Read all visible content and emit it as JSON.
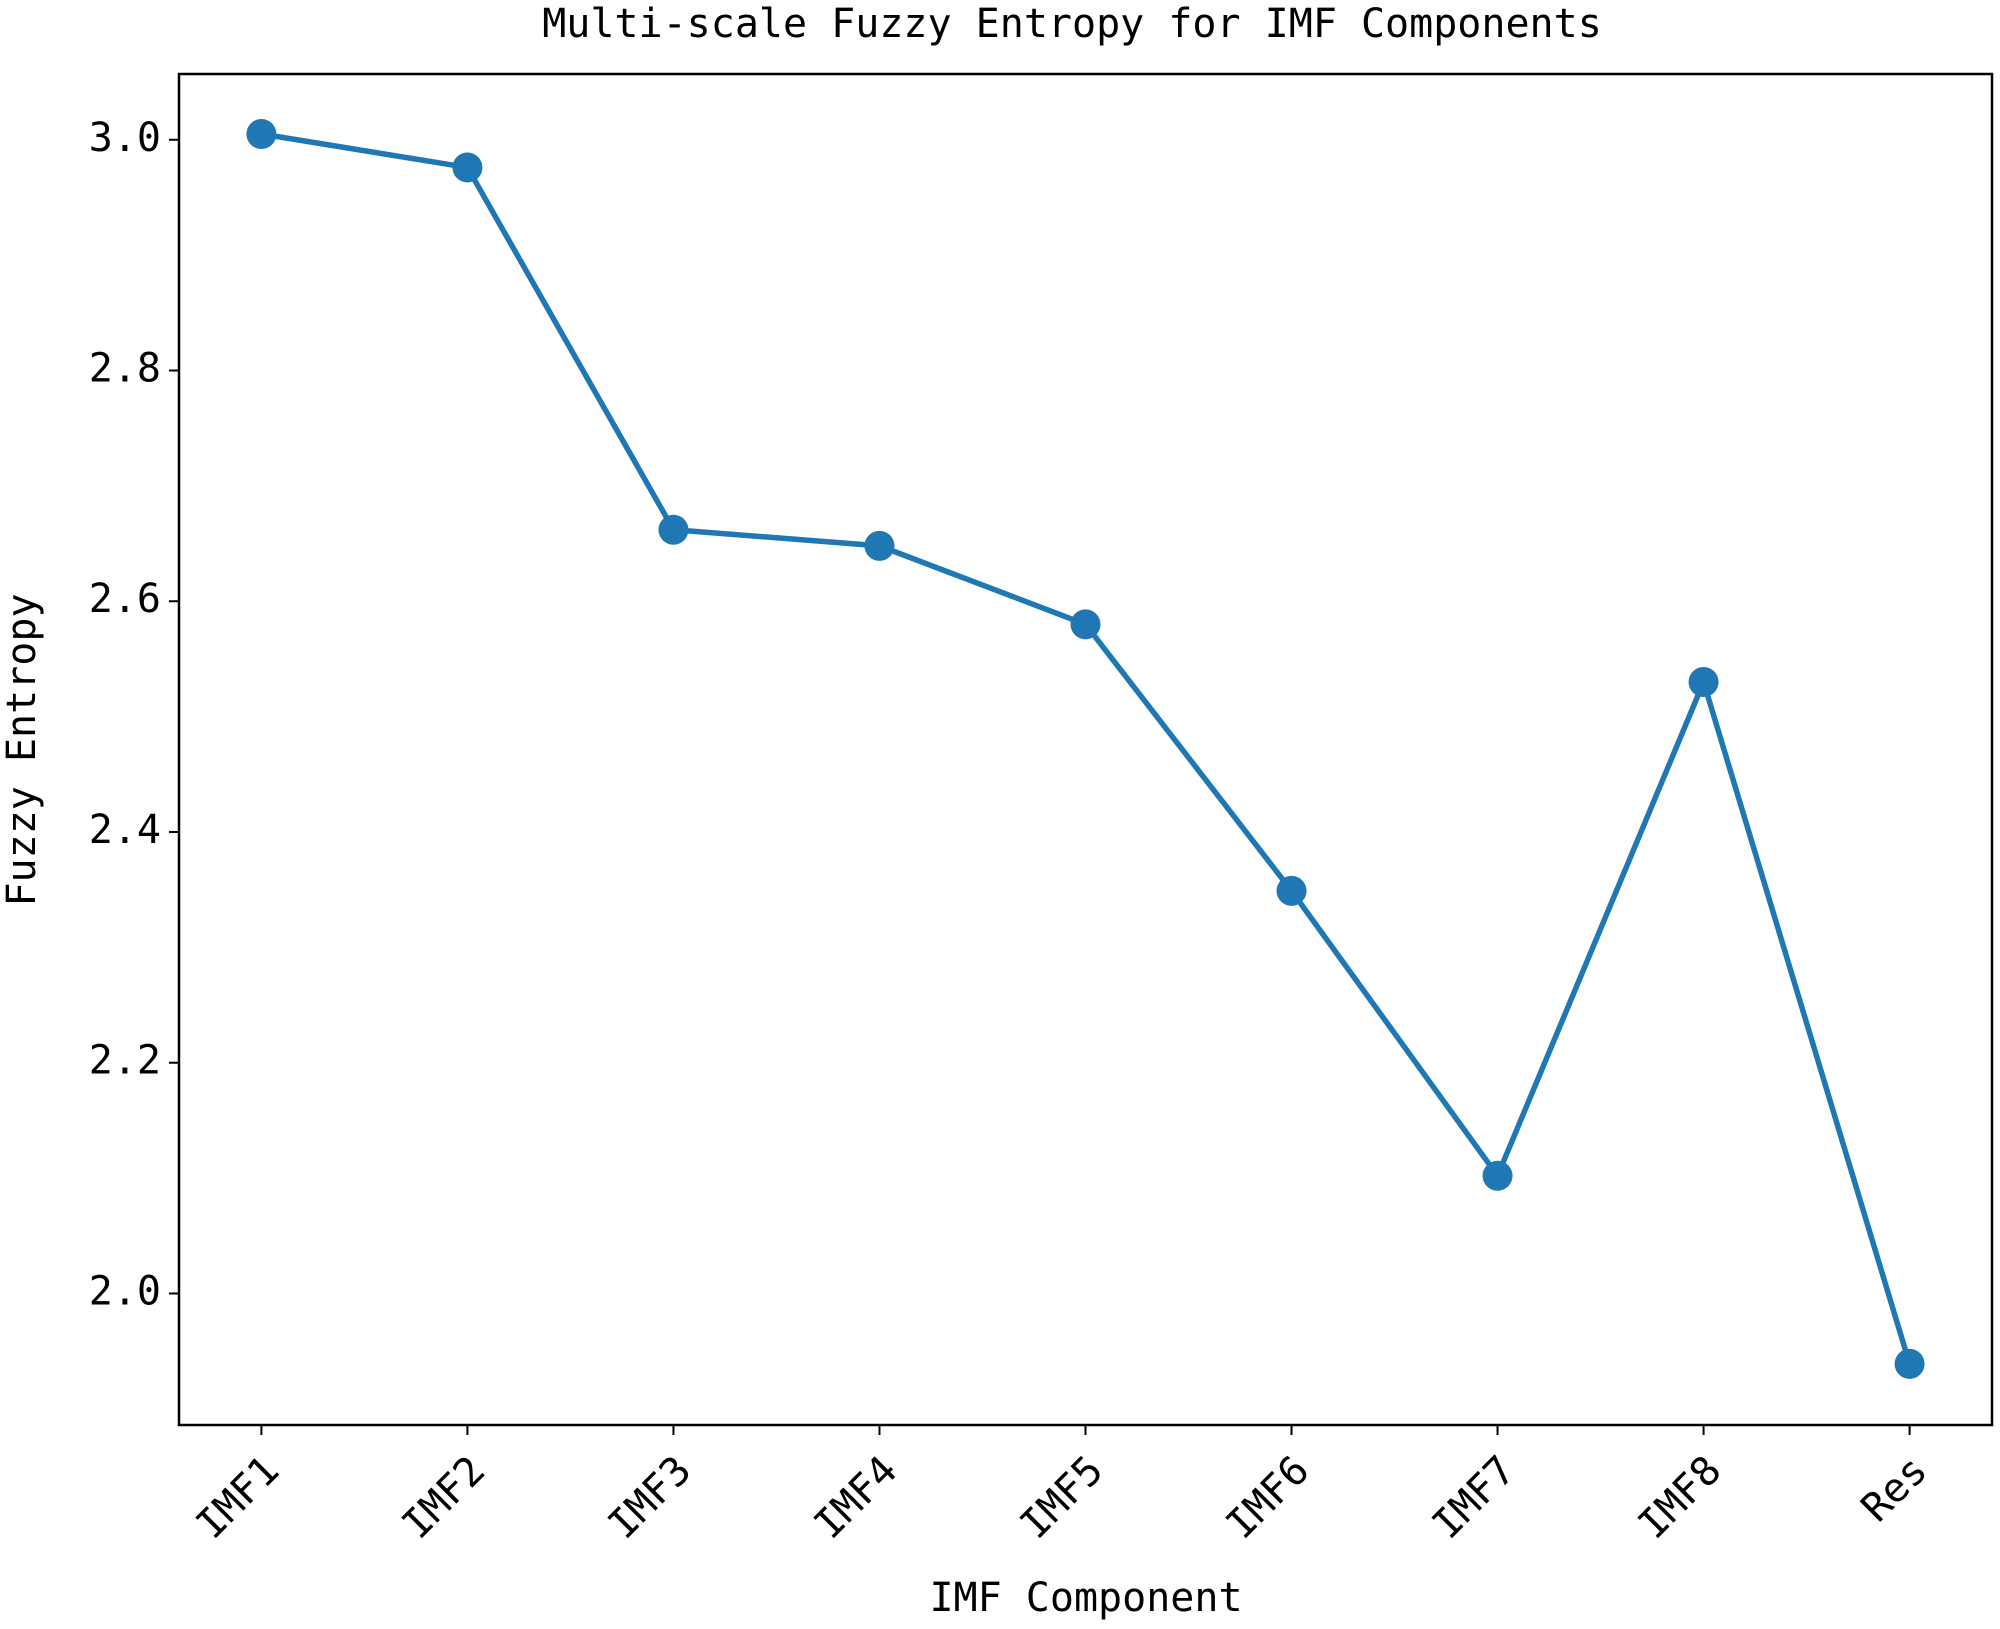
{
  "chart_data": {
    "type": "line",
    "title": "Multi-scale Fuzzy Entropy for IMF Components",
    "x_label": "IMF Component",
    "y_label": "Fuzzy Entropy",
    "categories": [
      "IMF1",
      "IMF2",
      "IMF3",
      "IMF4",
      "IMF5",
      "IMF6",
      "IMF7",
      "IMF8",
      "Res"
    ],
    "series": [
      {
        "name": "Fuzzy Entropy",
        "color": "#1f77b4",
        "values": [
          3.005,
          2.976,
          2.662,
          2.648,
          2.58,
          2.349,
          2.102,
          2.53,
          1.939
        ]
      }
    ],
    "ylim": [
      1.886,
      3.057
    ],
    "yticks": [
      {
        "value": 2.0,
        "label": "2.0"
      },
      2.2,
      2.4,
      2.6,
      2.8,
      {
        "value": 3.0,
        "label": "3.0"
      }
    ],
    "grid": false
  }
}
